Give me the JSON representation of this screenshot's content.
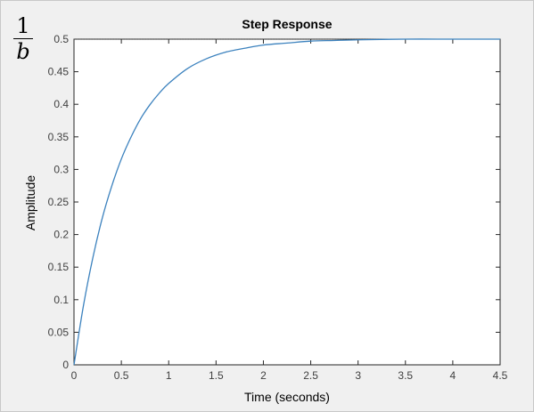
{
  "annotation": {
    "numerator": "1",
    "denominator": "b"
  },
  "chart_data": {
    "type": "line",
    "title": "Step Response",
    "xlabel": "Time (seconds)",
    "ylabel": "Amplitude",
    "xlim": [
      0,
      4.5
    ],
    "ylim": [
      0,
      0.5
    ],
    "xticks": [
      "0",
      "0.5",
      "1",
      "1.5",
      "2",
      "2.5",
      "3",
      "3.5",
      "4",
      "4.5"
    ],
    "yticks": [
      "0",
      "0.05",
      "0.1",
      "0.15",
      "0.2",
      "0.25",
      "0.3",
      "0.35",
      "0.4",
      "0.45",
      "0.5"
    ],
    "grid": false,
    "steady_state": 0.5,
    "series": [
      {
        "color": "#3c82be",
        "x": [
          0,
          0.1,
          0.2,
          0.3,
          0.4,
          0.5,
          0.6,
          0.7,
          0.8,
          0.9,
          1.0,
          1.2,
          1.4,
          1.6,
          1.8,
          2.0,
          2.25,
          2.5,
          2.75,
          3.0,
          3.5,
          4.0,
          4.5
        ],
        "y": [
          0,
          0.091,
          0.165,
          0.226,
          0.275,
          0.316,
          0.349,
          0.377,
          0.399,
          0.417,
          0.432,
          0.455,
          0.47,
          0.48,
          0.486,
          0.491,
          0.494,
          0.497,
          0.498,
          0.499,
          0.5,
          0.5,
          0.5
        ]
      }
    ]
  }
}
